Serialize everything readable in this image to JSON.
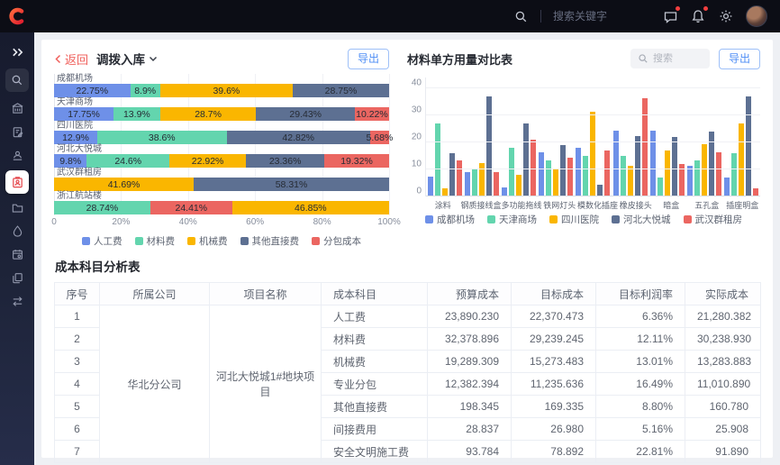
{
  "navbar": {
    "search_placeholder": "搜索关键字",
    "notification_dot_color": "#f43f3f"
  },
  "icons": {
    "navbar": [
      "search-icon",
      "message-icon",
      "bell-icon",
      "gear-icon",
      "avatar"
    ],
    "sidebar": [
      "chevrons-right-icon",
      "search-icon",
      "building-icon",
      "clipboard-edit-icon",
      "id-badge-icon",
      "clipboard-user-icon",
      "folder-icon",
      "water-drop-icon",
      "calendar-icon",
      "layers-icon",
      "swap-icon"
    ],
    "sidebar_active_item": "clipboard-user-icon"
  },
  "left_panel": {
    "back_label": "返回",
    "title": "调拨入库",
    "export_label": "导出"
  },
  "right_panel": {
    "title": "材料单方用量对比表",
    "search_placeholder": "搜索",
    "export_label": "导出"
  },
  "chart_data": [
    {
      "type": "bar",
      "variant": "horizontal-stacked",
      "unit": "%",
      "xlim": [
        0,
        100
      ],
      "x_ticks": [
        "0",
        "20%",
        "40%",
        "60%",
        "80%",
        "100%"
      ],
      "legend": [
        "人工费",
        "材料费",
        "机械费",
        "其他直接费",
        "分包成本"
      ],
      "colors": {
        "人工费": "#6e90e8",
        "材料费": "#63d5ae",
        "机械费": "#fab600",
        "其他直接费": "#5d7092",
        "分包成本": "#eb6661"
      },
      "rows": [
        {
          "category": "成都机场",
          "segments": [
            [
              "人工费",
              22.75
            ],
            [
              "材料费",
              8.9
            ],
            [
              "机械费",
              39.6
            ],
            [
              "其他直接费",
              28.75
            ]
          ]
        },
        {
          "category": "天津商场",
          "segments": [
            [
              "人工费",
              17.75
            ],
            [
              "材料费",
              13.9
            ],
            [
              "机械费",
              28.7
            ],
            [
              "其他直接费",
              29.43
            ],
            [
              "分包成本",
              10.22
            ]
          ]
        },
        {
          "category": "四川医院",
          "segments": [
            [
              "人工费",
              12.9
            ],
            [
              "材料费",
              38.6
            ],
            [
              "其他直接费",
              42.82
            ],
            [
              "分包成本",
              5.68
            ]
          ]
        },
        {
          "category": "河北大悦城",
          "segments": [
            [
              "人工费",
              9.8
            ],
            [
              "材料费",
              24.6
            ],
            [
              "机械费",
              22.92
            ],
            [
              "其他直接费",
              23.36
            ],
            [
              "分包成本",
              19.32
            ]
          ]
        },
        {
          "category": "武汉群租房",
          "segments": [
            [
              "机械费",
              41.69
            ],
            [
              "其他直接费",
              58.31
            ]
          ]
        },
        {
          "category": "浙江航站楼",
          "segments": [
            [
              "材料费",
              28.74
            ],
            [
              "分包成本",
              24.41
            ],
            [
              "机械费",
              46.85
            ]
          ]
        }
      ]
    },
    {
      "type": "bar",
      "variant": "grouped-vertical",
      "title": "材料单方用量对比表",
      "ylim": [
        0,
        40
      ],
      "y_ticks": [
        0,
        10,
        20,
        30,
        40
      ],
      "categories": [
        "涂料",
        "钢质接线盒",
        "多功能拖线",
        "铁网灯头",
        "模数化插座",
        "橡皮接头",
        "暗盒",
        "五孔盒",
        "插座明盒"
      ],
      "series": [
        {
          "name": "成都机场",
          "color": "#6e90e8",
          "values": [
            7.5,
            9,
            3.5,
            16.5,
            18,
            24.5,
            24.5,
            11.5,
            7
          ]
        },
        {
          "name": "天津商场",
          "color": "#63d5ae",
          "values": [
            27,
            10.5,
            18,
            13.5,
            15,
            15,
            7,
            13.5,
            16
          ]
        },
        {
          "name": "四川医院",
          "color": "#fab600",
          "values": [
            3,
            12.5,
            8,
            10.5,
            31.5,
            11.5,
            17,
            19.5,
            27
          ]
        },
        {
          "name": "河北大悦城",
          "color": "#5d7092",
          "values": [
            16,
            37,
            27,
            19,
            4.5,
            22.5,
            22,
            24,
            37
          ]
        },
        {
          "name": "武汉群租房",
          "color": "#eb6661",
          "values": [
            13.5,
            9,
            21,
            14.5,
            17,
            36.5,
            12,
            16.5,
            3
          ]
        }
      ]
    }
  ],
  "table": {
    "title": "成本科目分析表",
    "headers": [
      "序号",
      "所属公司",
      "项目名称",
      "成本科目",
      "预算成本",
      "目标成本",
      "目标利润率",
      "实际成本"
    ],
    "company": "华北分公司",
    "project": "河北大悦城1#地块项目",
    "rows": [
      {
        "no": "1",
        "subject": "人工费",
        "budget": "23,890.230",
        "target": "22,370.473",
        "profit": "6.36%",
        "actual": "21,280.382"
      },
      {
        "no": "2",
        "subject": "材料费",
        "budget": "32,378.896",
        "target": "29,239.245",
        "profit": "12.11%",
        "actual": "30,238.930"
      },
      {
        "no": "3",
        "subject": "机械费",
        "budget": "19,289.309",
        "target": "15,273.483",
        "profit": "13.01%",
        "actual": "13,283.883"
      },
      {
        "no": "4",
        "subject": "专业分包",
        "budget": "12,382.394",
        "target": "11,235.636",
        "profit": "16.49%",
        "actual": "11,010.890"
      },
      {
        "no": "5",
        "subject": "其他直接费",
        "budget": "198.345",
        "target": "169.335",
        "profit": "8.80%",
        "actual": "160.780"
      },
      {
        "no": "6",
        "subject": "间接费用",
        "budget": "28.837",
        "target": "26.980",
        "profit": "5.16%",
        "actual": "25.908"
      },
      {
        "no": "7",
        "subject": "安全文明施工费",
        "budget": "93.784",
        "target": "78.892",
        "profit": "22.81%",
        "actual": "91.890"
      }
    ]
  }
}
